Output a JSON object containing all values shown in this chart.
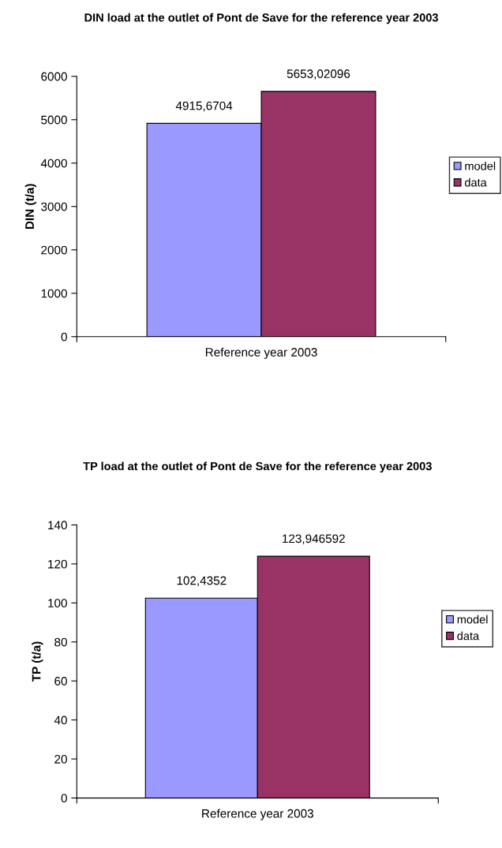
{
  "chart_data": [
    {
      "type": "bar",
      "title": "DIN load at the outlet of Pont de Save for the reference year 2003",
      "ylabel": "DIN (t/a)",
      "categories": [
        "Reference year 2003"
      ],
      "series": [
        {
          "name": "model",
          "color": "#9999ff",
          "values": [
            4915.6704
          ],
          "value_labels": [
            "4915,6704"
          ]
        },
        {
          "name": "data",
          "color": "#993366",
          "values": [
            5653.02096
          ],
          "value_labels": [
            "5653,02096"
          ]
        }
      ],
      "ylim": [
        0,
        6000
      ],
      "yticks": [
        0,
        1000,
        2000,
        3000,
        4000,
        5000,
        6000
      ],
      "grid": false,
      "legend": "right"
    },
    {
      "type": "bar",
      "title": "TP load at the outlet of Pont de Save for the reference year 2003",
      "ylabel": "TP (t/a)",
      "categories": [
        "Reference year 2003"
      ],
      "series": [
        {
          "name": "model",
          "color": "#9999ff",
          "values": [
            102.4352
          ],
          "value_labels": [
            "102,4352"
          ]
        },
        {
          "name": "data",
          "color": "#993366",
          "values": [
            123.946592
          ],
          "value_labels": [
            "123,946592"
          ]
        }
      ],
      "ylim": [
        0,
        140
      ],
      "yticks": [
        0,
        20,
        40,
        60,
        80,
        100,
        120,
        140
      ],
      "grid": false,
      "legend": "right"
    }
  ]
}
